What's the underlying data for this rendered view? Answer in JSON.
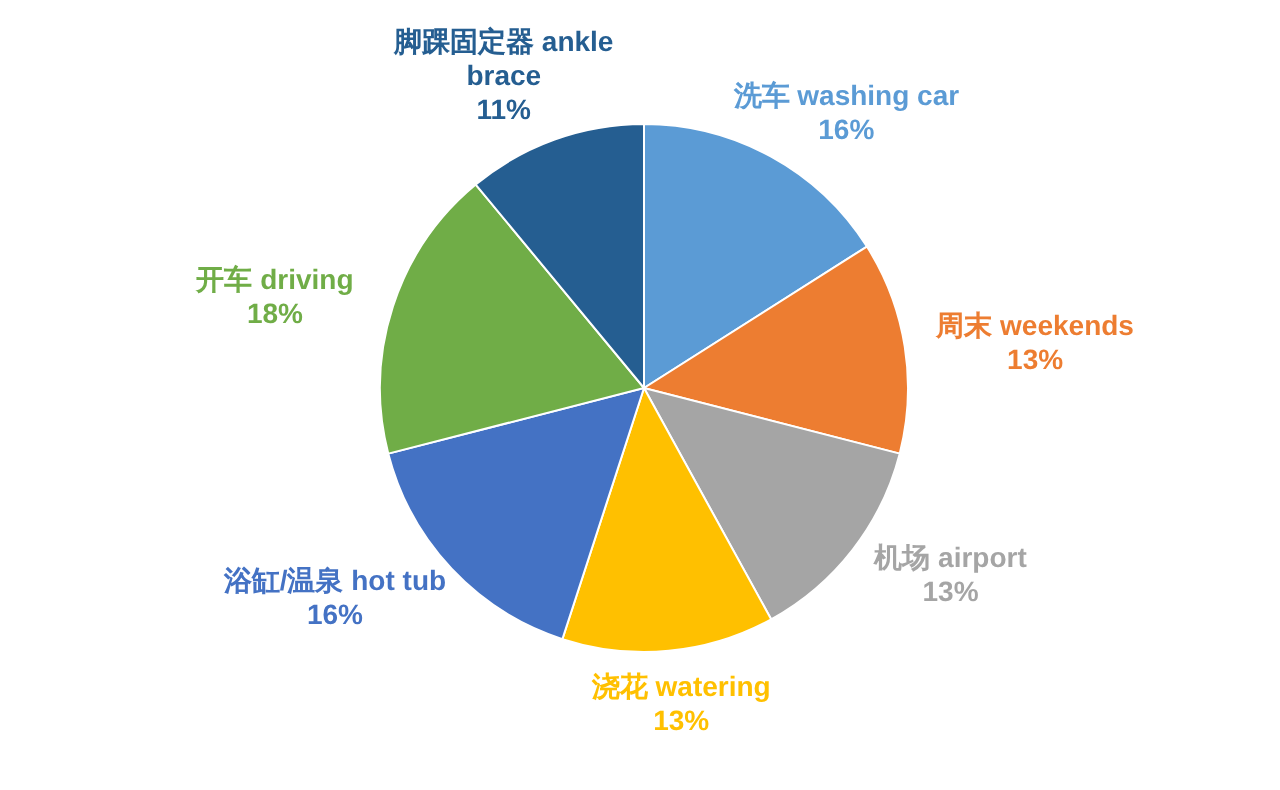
{
  "chart_data": {
    "type": "pie",
    "categories": [
      "洗车 washing car",
      "周末 weekends",
      "机场 airport",
      "浇花 watering",
      "浴缸/温泉 hot tub",
      "开车 driving",
      "脚踝固定器 ankle brace"
    ],
    "values": [
      16,
      13,
      13,
      13,
      16,
      18,
      11
    ],
    "value_labels": [
      "16%",
      "13%",
      "13%",
      "13%",
      "16%",
      "18%",
      "11%"
    ],
    "colors": [
      "#5b9bd5",
      "#ed7d31",
      "#a5a5a5",
      "#ffc000",
      "#4472c4",
      "#70ad47",
      "#255e91"
    ]
  }
}
